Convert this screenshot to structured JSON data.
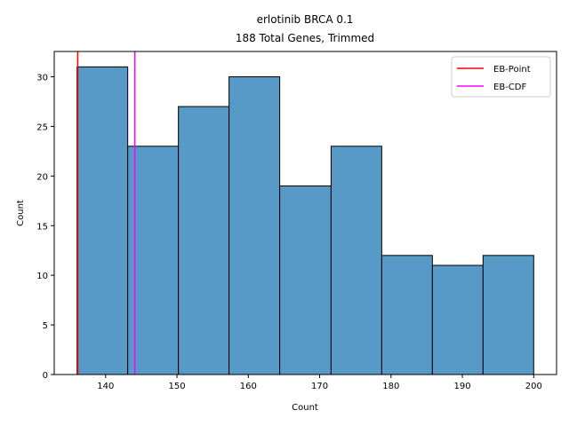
{
  "chart_data": {
    "type": "bar",
    "title": "erlotinib BRCA 0.1",
    "subtitle": "188 Total Genes, Trimmed",
    "xlabel": "Count",
    "ylabel": "Count",
    "bins": [
      {
        "start": 136.0,
        "end": 143.1,
        "count": 31
      },
      {
        "start": 143.1,
        "end": 150.2,
        "count": 23
      },
      {
        "start": 150.2,
        "end": 157.3,
        "count": 27
      },
      {
        "start": 157.3,
        "end": 164.4,
        "count": 30
      },
      {
        "start": 164.4,
        "end": 171.6,
        "count": 19
      },
      {
        "start": 171.6,
        "end": 178.7,
        "count": 23
      },
      {
        "start": 178.7,
        "end": 185.8,
        "count": 12
      },
      {
        "start": 185.8,
        "end": 192.9,
        "count": 11
      },
      {
        "start": 192.9,
        "end": 200.0,
        "count": 12
      }
    ],
    "bar_color": "#5799c7",
    "bar_edge_color": "#000000",
    "xlim": [
      132.8,
      203.2
    ],
    "ylim": [
      0,
      32.55
    ],
    "xticks": [
      140,
      150,
      160,
      170,
      180,
      190,
      200
    ],
    "yticks": [
      0,
      5,
      10,
      15,
      20,
      25,
      30
    ],
    "vlines": [
      {
        "name": "EB-Point",
        "x": 136.1,
        "color": "#ff0000"
      },
      {
        "name": "EB-CDF",
        "x": 144.1,
        "color": "#ff00ff"
      }
    ],
    "legend": {
      "position": "top-right",
      "entries": [
        "EB-Point",
        "EB-CDF"
      ]
    },
    "grid": false
  }
}
